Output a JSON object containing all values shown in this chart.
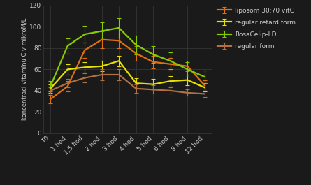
{
  "x_labels": [
    "T0",
    "1 hod",
    "1,5 hod",
    "2 hod",
    "3 hod",
    "4 hod",
    "5 hod",
    "6 hod",
    "8 hod",
    "12 hod"
  ],
  "x_positions": [
    0,
    1,
    2,
    3,
    4,
    5,
    6,
    7,
    8,
    9
  ],
  "series": [
    {
      "label": "liposom 30:70 vitC",
      "color": "#e07010",
      "values": [
        32,
        44,
        78,
        88,
        87,
        75,
        67,
        65,
        63,
        45
      ],
      "errors": [
        4,
        5,
        7,
        8,
        7,
        7,
        6,
        6,
        5,
        5
      ]
    },
    {
      "label": "regular retard form",
      "color": "#e8e000",
      "values": [
        42,
        60,
        62,
        63,
        68,
        47,
        46,
        49,
        50,
        43
      ],
      "errors": [
        4,
        5,
        5,
        5,
        5,
        5,
        5,
        5,
        5,
        4
      ]
    },
    {
      "label": "RosaCelip-LD",
      "color": "#88cc00",
      "values": [
        44,
        82,
        93,
        96,
        99,
        83,
        74,
        68,
        60,
        53
      ],
      "errors": [
        5,
        7,
        8,
        8,
        9,
        9,
        8,
        8,
        7,
        6
      ]
    },
    {
      "label": "regular form",
      "color": "#b07040",
      "values": [
        40,
        47,
        52,
        55,
        55,
        42,
        41,
        40,
        38,
        37
      ],
      "errors": [
        3,
        4,
        4,
        5,
        5,
        4,
        4,
        3,
        3,
        3
      ]
    }
  ],
  "ylabel": "koncentraci vitamínu C v mikroM/L",
  "ylim": [
    0,
    120
  ],
  "yticks": [
    0,
    20,
    40,
    60,
    80,
    100,
    120
  ],
  "background_color": "#1a1a1a",
  "plot_bg_color": "#1a1a1a",
  "grid_color": "#3a3a3a",
  "text_color": "#cccccc",
  "legend_fontsize": 6.5,
  "axis_fontsize": 6.5,
  "ylabel_fontsize": 6.0
}
